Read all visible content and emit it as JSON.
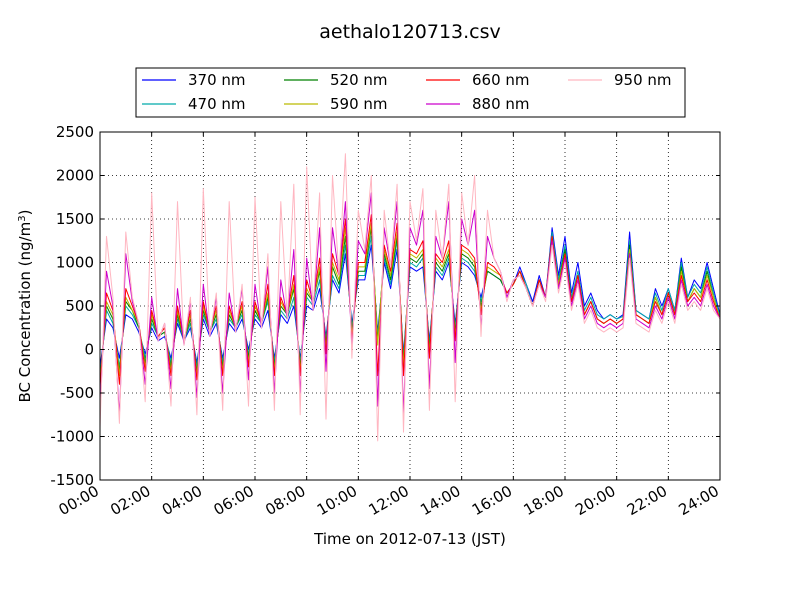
{
  "chart_data": {
    "type": "line",
    "title": "aethalo120713.csv",
    "xlabel": "Time on 2012-07-13 (JST)",
    "ylabel": "BC Concentration (ng/m",
    "ylabel_sup": "3",
    "ylabel_close": ")",
    "xlim": [
      "00:00",
      "24:00"
    ],
    "ylim": [
      -1500,
      2500
    ],
    "x_ticks": [
      "00:00",
      "02:00",
      "04:00",
      "06:00",
      "08:00",
      "10:00",
      "12:00",
      "14:00",
      "16:00",
      "18:00",
      "20:00",
      "22:00",
      "24:00"
    ],
    "y_ticks": [
      -1500,
      -1000,
      -500,
      0,
      500,
      1000,
      1500,
      2000,
      2500
    ],
    "grid": true,
    "legend_position": "top (above plot)",
    "x_hours": [
      0,
      0.25,
      0.5,
      0.75,
      1,
      1.25,
      1.5,
      1.75,
      2,
      2.25,
      2.5,
      2.75,
      3,
      3.25,
      3.5,
      3.75,
      4,
      4.25,
      4.5,
      4.75,
      5,
      5.25,
      5.5,
      5.75,
      6,
      6.25,
      6.5,
      6.75,
      7,
      7.25,
      7.5,
      7.75,
      8,
      8.25,
      8.5,
      8.75,
      9,
      9.25,
      9.5,
      9.75,
      10,
      10.25,
      10.5,
      10.75,
      11,
      11.25,
      11.5,
      11.75,
      12,
      12.25,
      12.5,
      12.75,
      13,
      13.25,
      13.5,
      13.75,
      14,
      14.25,
      14.5,
      14.75,
      15,
      15.25,
      15.5,
      15.75,
      16,
      16.25,
      16.5,
      16.75,
      17,
      17.25,
      17.5,
      17.75,
      18,
      18.25,
      18.5,
      18.75,
      19,
      19.25,
      19.5,
      19.75,
      20,
      20.25,
      20.5,
      20.75,
      21,
      21.25,
      21.5,
      21.75,
      22,
      22.25,
      22.5,
      22.75,
      23,
      23.25,
      23.5,
      23.75,
      24
    ],
    "series": [
      {
        "name": "370 nm",
        "color": "#0000ff",
        "values": [
          -200,
          350,
          250,
          -100,
          400,
          350,
          200,
          -50,
          250,
          100,
          150,
          -100,
          300,
          100,
          250,
          -150,
          350,
          150,
          300,
          -100,
          300,
          200,
          350,
          0,
          350,
          250,
          450,
          -100,
          400,
          300,
          500,
          -100,
          500,
          450,
          700,
          150,
          800,
          650,
          1100,
          300,
          800,
          800,
          1200,
          200,
          1000,
          700,
          1150,
          -50,
          950,
          900,
          950,
          100,
          900,
          800,
          1000,
          300,
          1000,
          950,
          850,
          600,
          900,
          850,
          800,
          650,
          750,
          950,
          750,
          550,
          850,
          600,
          1400,
          850,
          1300,
          650,
          1000,
          500,
          650,
          450,
          350,
          400,
          350,
          400,
          1350,
          450,
          400,
          350,
          700,
          500,
          700,
          450,
          1050,
          600,
          800,
          700,
          1000,
          700,
          400
        ]
      },
      {
        "name": "470 nm",
        "color": "#00aaaa",
        "values": [
          -300,
          450,
          300,
          -200,
          500,
          400,
          250,
          -100,
          300,
          150,
          200,
          -150,
          350,
          100,
          300,
          -200,
          400,
          200,
          350,
          -150,
          350,
          250,
          400,
          -50,
          400,
          300,
          550,
          -150,
          450,
          350,
          600,
          -150,
          600,
          500,
          800,
          100,
          850,
          700,
          1200,
          250,
          850,
          850,
          1300,
          150,
          1050,
          750,
          1250,
          -100,
          1000,
          950,
          1050,
          50,
          950,
          850,
          1050,
          250,
          1050,
          1000,
          900,
          550,
          900,
          850,
          800,
          650,
          750,
          900,
          750,
          500,
          800,
          600,
          1350,
          800,
          1200,
          600,
          900,
          450,
          600,
          400,
          350,
          400,
          350,
          380,
          1250,
          450,
          400,
          350,
          650,
          450,
          700,
          450,
          1000,
          600,
          750,
          650,
          950,
          650,
          380
        ]
      },
      {
        "name": "520 nm",
        "color": "#008000",
        "values": [
          -350,
          500,
          350,
          -250,
          550,
          450,
          250,
          -150,
          350,
          150,
          200,
          -200,
          400,
          100,
          350,
          -250,
          450,
          200,
          400,
          -200,
          400,
          250,
          450,
          -100,
          450,
          300,
          600,
          -200,
          500,
          400,
          700,
          -200,
          650,
          550,
          900,
          50,
          950,
          750,
          1300,
          200,
          900,
          900,
          1400,
          100,
          1100,
          800,
          1300,
          -150,
          1050,
          1000,
          1100,
          0,
          1000,
          900,
          1100,
          200,
          1100,
          1050,
          950,
          500,
          900,
          850,
          800,
          650,
          750,
          900,
          700,
          500,
          800,
          600,
          1300,
          750,
          1150,
          550,
          850,
          400,
          550,
          350,
          300,
          350,
          300,
          350,
          1200,
          400,
          350,
          300,
          600,
          400,
          650,
          400,
          950,
          550,
          700,
          600,
          900,
          600,
          350
        ]
      },
      {
        "name": "590 nm",
        "color": "#bbbb00",
        "values": [
          -400,
          550,
          400,
          -300,
          600,
          450,
          300,
          -200,
          400,
          150,
          250,
          -250,
          450,
          100,
          400,
          -300,
          500,
          200,
          450,
          -250,
          450,
          250,
          500,
          -150,
          500,
          300,
          650,
          -250,
          550,
          400,
          750,
          -250,
          700,
          550,
          950,
          0,
          1000,
          800,
          1400,
          150,
          950,
          950,
          1450,
          50,
          1150,
          850,
          1350,
          -200,
          1100,
          1050,
          1150,
          -50,
          1050,
          950,
          1150,
          150,
          1150,
          1100,
          1000,
          450,
          950,
          900,
          850,
          650,
          750,
          900,
          700,
          500,
          800,
          600,
          1300,
          750,
          1100,
          550,
          850,
          400,
          550,
          350,
          300,
          350,
          300,
          350,
          1150,
          400,
          350,
          300,
          600,
          400,
          650,
          400,
          900,
          550,
          700,
          600,
          850,
          600,
          350
        ]
      },
      {
        "name": "660 nm",
        "color": "#ff0000",
        "values": [
          -450,
          650,
          450,
          -400,
          700,
          500,
          300,
          -250,
          450,
          150,
          250,
          -300,
          500,
          100,
          450,
          -350,
          550,
          200,
          500,
          -300,
          500,
          250,
          550,
          -200,
          550,
          300,
          750,
          -300,
          600,
          400,
          850,
          -300,
          800,
          550,
          1050,
          -50,
          1100,
          850,
          1500,
          100,
          1000,
          1000,
          1550,
          -300,
          1200,
          900,
          1450,
          -300,
          1150,
          1100,
          1250,
          -100,
          1100,
          1000,
          1250,
          100,
          1200,
          1150,
          1050,
          400,
          1000,
          950,
          850,
          650,
          750,
          900,
          700,
          500,
          800,
          600,
          1300,
          700,
          1100,
          550,
          850,
          400,
          550,
          350,
          300,
          350,
          300,
          350,
          1100,
          400,
          350,
          300,
          550,
          400,
          650,
          400,
          850,
          550,
          650,
          550,
          800,
          550,
          350
        ]
      },
      {
        "name": "880 nm",
        "color": "#cc00cc",
        "values": [
          -700,
          900,
          500,
          -750,
          1100,
          550,
          300,
          -400,
          600,
          100,
          300,
          -450,
          700,
          50,
          550,
          -550,
          750,
          150,
          600,
          -500,
          650,
          200,
          700,
          -350,
          750,
          250,
          950,
          -500,
          800,
          350,
          1150,
          -500,
          1050,
          450,
          1400,
          -250,
          1400,
          850,
          1700,
          0,
          1250,
          1100,
          1800,
          -650,
          1400,
          950,
          1700,
          -750,
          1400,
          1200,
          1600,
          -450,
          1300,
          1050,
          1700,
          -150,
          1500,
          1200,
          1600,
          250,
          1300,
          1050,
          900,
          600,
          800,
          850,
          700,
          500,
          750,
          600,
          1250,
          700,
          1050,
          500,
          800,
          350,
          500,
          300,
          250,
          300,
          250,
          300,
          1100,
          350,
          300,
          250,
          500,
          350,
          600,
          350,
          800,
          500,
          600,
          500,
          750,
          500,
          350
        ]
      },
      {
        "name": "950 nm",
        "color": "#ffb6c1",
        "values": [
          -900,
          1300,
          600,
          -850,
          1350,
          600,
          300,
          -600,
          1800,
          100,
          300,
          -650,
          1700,
          50,
          600,
          -750,
          1850,
          150,
          650,
          -700,
          1700,
          200,
          750,
          -650,
          1750,
          250,
          1100,
          -700,
          1700,
          350,
          1900,
          -750,
          2100,
          450,
          1800,
          -800,
          2000,
          850,
          2250,
          -100,
          1600,
          1150,
          2000,
          -1050,
          1600,
          950,
          1900,
          -950,
          1700,
          1250,
          1850,
          -700,
          1600,
          1050,
          1900,
          -600,
          1800,
          1200,
          2000,
          150,
          1600,
          1050,
          900,
          550,
          800,
          850,
          700,
          500,
          750,
          550,
          1200,
          650,
          1000,
          450,
          750,
          300,
          450,
          250,
          200,
          250,
          200,
          250,
          1050,
          300,
          250,
          200,
          450,
          300,
          550,
          300,
          750,
          450,
          550,
          450,
          700,
          450,
          350
        ]
      }
    ]
  }
}
